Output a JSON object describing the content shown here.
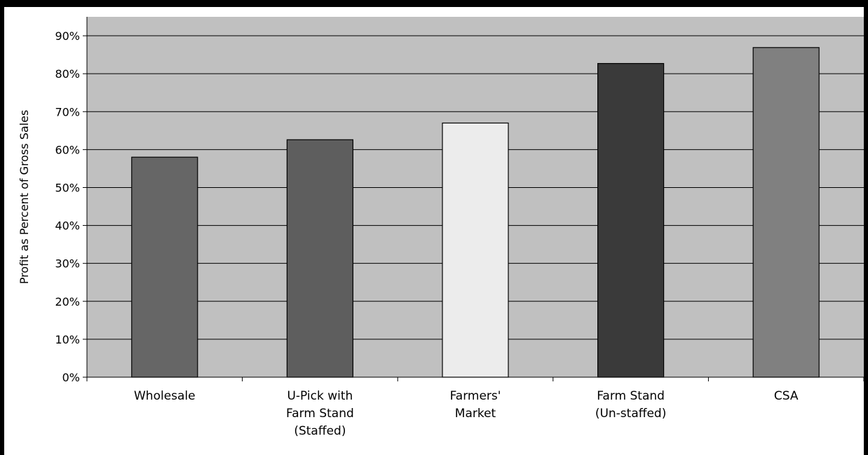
{
  "chart_data": {
    "type": "bar",
    "categories": [
      [
        "Wholesale"
      ],
      [
        "U-Pick with",
        "Farm Stand",
        "(Staffed)"
      ],
      [
        "Farmers'",
        "Market"
      ],
      [
        "Farm Stand",
        "(Un-staffed)"
      ],
      [
        "CSA"
      ]
    ],
    "values": [
      58,
      62.6,
      67,
      82.7,
      86.9
    ],
    "bar_colors": [
      "#666666",
      "#5e5e5e",
      "#ececec",
      "#3a3a3a",
      "#808080"
    ],
    "plot_background": "#c0c0c0",
    "ylabel": "Profit as Percent of Gross Sales",
    "ylim": [
      0,
      95
    ],
    "yticks": [
      0,
      10,
      20,
      30,
      40,
      50,
      60,
      70,
      80,
      90
    ],
    "ytick_format": "{v}%",
    "grid": true,
    "legend": "none"
  }
}
